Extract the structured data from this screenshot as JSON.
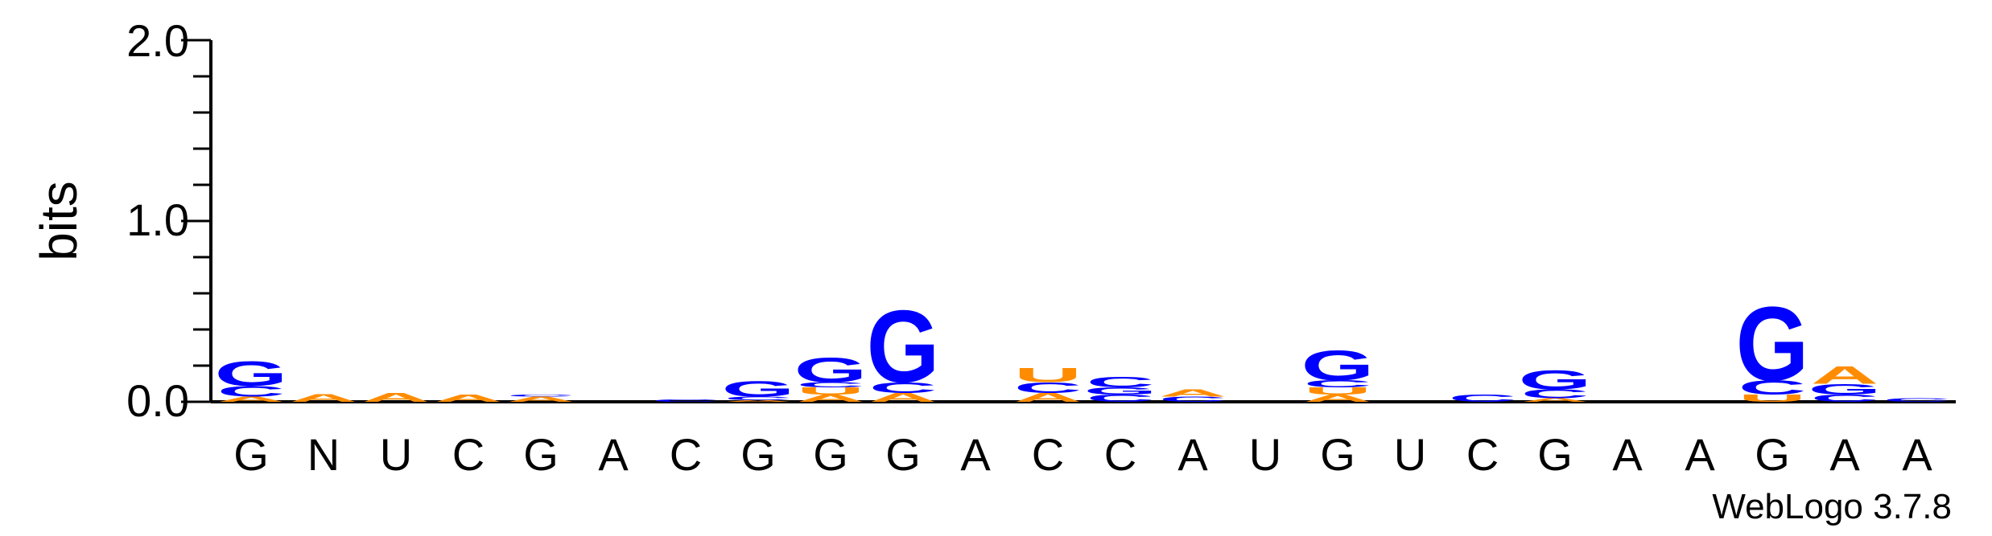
{
  "chart_data": {
    "type": "sequence_logo",
    "ylabel": "bits",
    "ylim": [
      0,
      2.0
    ],
    "yticks": [
      "0.0",
      "1.0",
      "2.0"
    ],
    "x_labels": [
      "G",
      "N",
      "U",
      "C",
      "G",
      "A",
      "C",
      "G",
      "G",
      "G",
      "A",
      "C",
      "C",
      "A",
      "U",
      "G",
      "U",
      "C",
      "G",
      "A",
      "A",
      "G",
      "A",
      "A"
    ],
    "credit": "WebLogo 3.7.8",
    "colors": {
      "G": "#0000ff",
      "C": "#0000ff",
      "A": "#ff8c00",
      "U": "#ff8c00"
    },
    "stacks": [
      [
        {
          "b": "A",
          "h": 0.03
        },
        {
          "b": "C",
          "h": 0.06
        },
        {
          "b": "G",
          "h": 0.14
        }
      ],
      [
        {
          "b": "A",
          "h": 0.045
        }
      ],
      [
        {
          "b": "A",
          "h": 0.05
        }
      ],
      [
        {
          "b": "A",
          "h": 0.04
        }
      ],
      [
        {
          "b": "A",
          "h": 0.03
        },
        {
          "b": "C",
          "h": 0.01
        }
      ],
      [],
      [
        {
          "b": "C",
          "h": 0.015
        }
      ],
      [
        {
          "b": "A",
          "h": 0.01
        },
        {
          "b": "C",
          "h": 0.02
        },
        {
          "b": "G",
          "h": 0.09
        }
      ],
      [
        {
          "b": "A",
          "h": 0.04
        },
        {
          "b": "U",
          "h": 0.04
        },
        {
          "b": "C",
          "h": 0.03
        },
        {
          "b": "G",
          "h": 0.14
        }
      ],
      [
        {
          "b": "A",
          "h": 0.05
        },
        {
          "b": "C",
          "h": 0.06
        },
        {
          "b": "G",
          "h": 0.41
        }
      ],
      [],
      [
        {
          "b": "A",
          "h": 0.05
        },
        {
          "b": "C",
          "h": 0.06
        },
        {
          "b": "U",
          "h": 0.08
        }
      ],
      [
        {
          "b": "C",
          "h": 0.04
        },
        {
          "b": "G",
          "h": 0.04
        },
        {
          "b": "C",
          "h": 0.06
        }
      ],
      [
        {
          "b": "C",
          "h": 0.03
        },
        {
          "b": "A",
          "h": 0.04
        }
      ],
      [],
      [
        {
          "b": "A",
          "h": 0.04
        },
        {
          "b": "U",
          "h": 0.04
        },
        {
          "b": "C",
          "h": 0.04
        },
        {
          "b": "G",
          "h": 0.17
        }
      ],
      [],
      [
        {
          "b": "C",
          "h": 0.04
        }
      ],
      [
        {
          "b": "A",
          "h": 0.02
        },
        {
          "b": "C",
          "h": 0.05
        },
        {
          "b": "G",
          "h": 0.11
        }
      ],
      [],
      [],
      [
        {
          "b": "U",
          "h": 0.04
        },
        {
          "b": "C",
          "h": 0.08
        },
        {
          "b": "G",
          "h": 0.42
        }
      ],
      [
        {
          "b": "C",
          "h": 0.04
        },
        {
          "b": "G",
          "h": 0.06
        },
        {
          "b": "A",
          "h": 0.1
        }
      ],
      [
        {
          "b": "C",
          "h": 0.02
        }
      ]
    ]
  }
}
